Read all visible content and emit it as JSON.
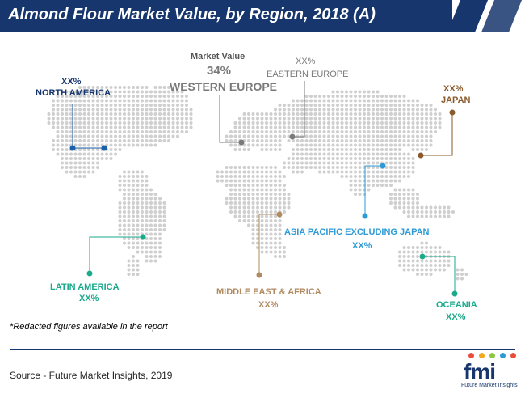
{
  "title": "Almond Flour Market Value, by Region, 2018 (A)",
  "colors": {
    "navy": "#16366d",
    "blue": "#1a5fa8",
    "gray": "#7a7a7a",
    "brown": "#8a5a2b",
    "teal": "#1aa98a",
    "sky": "#2e9bd6",
    "tan": "#b08a60",
    "map_dot": "#cfcfcf"
  },
  "regions": {
    "north_america": {
      "value": "XX%",
      "name": "NORTH AMERICA"
    },
    "western_europe": {
      "caption": "Market Value",
      "value": "34%",
      "name": "WESTERN EUROPE"
    },
    "eastern_europe": {
      "value": "XX%",
      "name": "EASTERN EUROPE"
    },
    "japan": {
      "value": "XX%",
      "name": "JAPAN"
    },
    "apej": {
      "name": "ASIA PACIFIC EXCLUDING JAPAN",
      "value": "XX%"
    },
    "latin_america": {
      "name": "LATIN AMERICA",
      "value": "XX%"
    },
    "mea": {
      "name": "MIDDLE EAST & AFRICA",
      "value": "XX%"
    },
    "oceania": {
      "name": "OCEANIA",
      "value": "XX%"
    }
  },
  "note": "*Redacted figures available in the report",
  "source": "Source - Future Market Insights, 2019",
  "logo": {
    "mark": "fmi",
    "subtitle": "Future Market Insights"
  }
}
